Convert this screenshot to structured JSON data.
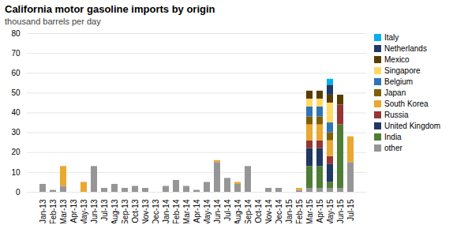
{
  "chart_data": {
    "type": "bar",
    "stacked": true,
    "title": "California motor gasoline imports by origin",
    "subtitle": "thousand barrels per day",
    "categories": [
      "Jan-13",
      "Feb-13",
      "Mar-13",
      "Apr-13",
      "May-13",
      "Jun-13",
      "Jul-13",
      "Aug-13",
      "Sep-13",
      "Oct-13",
      "Nov-13",
      "Dec-13",
      "Jan-14",
      "Feb-14",
      "Mar-14",
      "Apr-14",
      "May-14",
      "Jun-14",
      "Jul-14",
      "Aug-14",
      "Sep-14",
      "Oct-14",
      "Nov-14",
      "Dec-14",
      "Jan-15",
      "Feb-15",
      "Mar-15",
      "Apr-15",
      "May-15",
      "Jun-15",
      "Jul-15"
    ],
    "series": [
      {
        "name": "other",
        "color": "#969696",
        "values": [
          4,
          1,
          3,
          0,
          0,
          13,
          2,
          4,
          2,
          3,
          2,
          0,
          3,
          6,
          3,
          1,
          5,
          15,
          7,
          4,
          13,
          0,
          2,
          2,
          0,
          1,
          2,
          2,
          2,
          2,
          15
        ]
      },
      {
        "name": "India",
        "color": "#4e7d35",
        "values": [
          0,
          0,
          0,
          0,
          0,
          0,
          0,
          0,
          0,
          0,
          0,
          0,
          0,
          0,
          0,
          0,
          0,
          0,
          0,
          0,
          0,
          0,
          0,
          0,
          0,
          0,
          11,
          11,
          3,
          32,
          0
        ]
      },
      {
        "name": "United Kingdom",
        "color": "#1f3864",
        "values": [
          0,
          0,
          0,
          0,
          0,
          0,
          0,
          0,
          0,
          0,
          0,
          0,
          0,
          0,
          0,
          0,
          0,
          0,
          0,
          0,
          0,
          0,
          0,
          0,
          0,
          0,
          9,
          9,
          9,
          0,
          0
        ]
      },
      {
        "name": "Russia",
        "color": "#943634",
        "values": [
          0,
          0,
          0,
          0,
          0,
          0,
          0,
          0,
          0,
          0,
          0,
          0,
          0,
          0,
          0,
          0,
          0,
          0,
          0,
          0,
          0,
          0,
          0,
          0,
          0,
          0,
          4,
          4,
          4,
          10,
          0
        ]
      },
      {
        "name": "South Korea",
        "color": "#e8a831",
        "values": [
          0,
          0,
          10,
          0,
          5,
          0,
          0,
          0,
          0,
          0,
          0,
          0,
          0,
          0,
          0,
          0,
          0,
          1,
          0,
          1,
          0,
          0,
          0,
          0,
          0,
          1,
          8,
          8,
          8,
          0,
          13
        ]
      },
      {
        "name": "Japan",
        "color": "#7f6000",
        "values": [
          0,
          0,
          0,
          0,
          0,
          0,
          0,
          0,
          0,
          0,
          0,
          0,
          0,
          0,
          0,
          0,
          0,
          0,
          0,
          0,
          0,
          0,
          0,
          0,
          0,
          0,
          4,
          4,
          4,
          0,
          0
        ]
      },
      {
        "name": "Belgium",
        "color": "#2e75b6",
        "values": [
          0,
          0,
          0,
          0,
          0,
          0,
          0,
          0,
          0,
          0,
          0,
          0,
          0,
          0,
          0,
          0,
          0,
          0,
          0,
          0,
          0,
          0,
          0,
          0,
          0,
          0,
          5,
          5,
          5,
          0,
          0
        ]
      },
      {
        "name": "Singapore",
        "color": "#ffd966",
        "values": [
          0,
          0,
          0,
          0,
          0,
          0,
          0,
          0,
          0,
          0,
          0,
          0,
          0,
          0,
          0,
          0,
          0,
          0,
          0,
          0,
          0,
          0,
          0,
          0,
          0,
          0,
          4,
          4,
          10,
          0,
          0
        ]
      },
      {
        "name": "Mexico",
        "color": "#593c00",
        "values": [
          0,
          0,
          0,
          0,
          0,
          0,
          0,
          0,
          0,
          0,
          0,
          0,
          0,
          0,
          0,
          0,
          0,
          0,
          0,
          0,
          0,
          0,
          0,
          0,
          0,
          0,
          4,
          4,
          4,
          5,
          0
        ]
      },
      {
        "name": "Netherlands",
        "color": "#203864",
        "values": [
          0,
          0,
          0,
          0,
          0,
          0,
          0,
          0,
          0,
          0,
          0,
          0,
          0,
          0,
          0,
          0,
          0,
          0,
          0,
          0,
          0,
          0,
          0,
          0,
          0,
          0,
          0,
          0,
          5,
          0,
          0
        ]
      },
      {
        "name": "Italy",
        "color": "#00b0f0",
        "values": [
          0,
          0,
          0,
          0,
          0,
          0,
          0,
          0,
          0,
          0,
          0,
          0,
          0,
          0,
          0,
          0,
          0,
          0,
          0,
          0,
          0,
          0,
          0,
          0,
          0,
          0,
          0,
          0,
          3,
          0,
          0
        ]
      }
    ],
    "ylim": [
      0,
      80
    ],
    "yticks": [
      0,
      10,
      20,
      30,
      40,
      50,
      60,
      70,
      80
    ],
    "grid": true,
    "legend": "right"
  }
}
